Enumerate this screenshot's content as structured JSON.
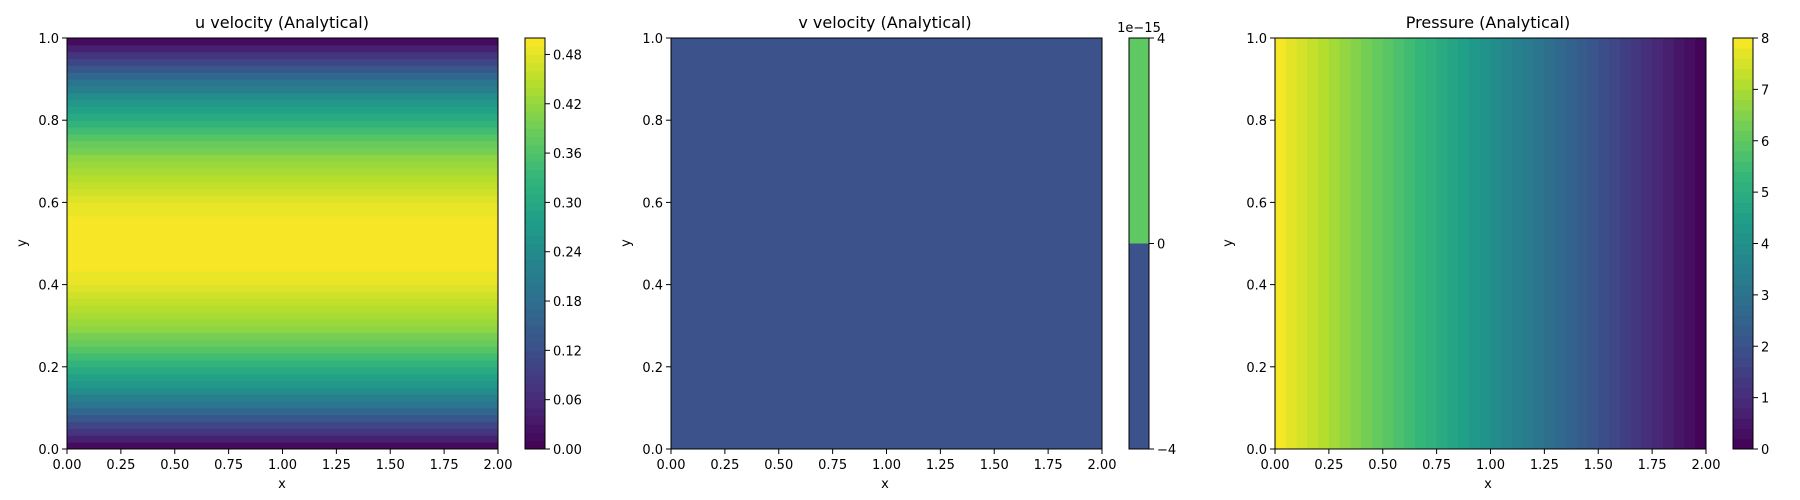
{
  "chart_data": [
    {
      "type": "heatmap",
      "title": "u velocity (Analytical)",
      "xlabel": "x",
      "ylabel": "y",
      "xlim": [
        0,
        2
      ],
      "ylim": [
        0,
        1
      ],
      "x_ticks": [
        "0.00",
        "0.25",
        "0.50",
        "0.75",
        "1.00",
        "1.25",
        "1.50",
        "1.75",
        "2.00"
      ],
      "y_ticks": [
        "0.0",
        "0.2",
        "0.4",
        "0.6",
        "0.8",
        "1.0"
      ],
      "field": "u = 2*0.5*y*(1-y) ... parabolic profile varying with y, constant in x",
      "colorbar": {
        "range": [
          0,
          0.5
        ],
        "ticks": [
          "0.00",
          "0.06",
          "0.12",
          "0.18",
          "0.24",
          "0.30",
          "0.36",
          "0.42",
          "0.48"
        ],
        "offset_label": "",
        "levels": 50
      },
      "colormap": "viridis"
    },
    {
      "type": "heatmap",
      "title": "v velocity (Analytical)",
      "xlabel": "x",
      "ylabel": "y",
      "xlim": [
        0,
        2
      ],
      "ylim": [
        0,
        1
      ],
      "x_ticks": [
        "0.00",
        "0.25",
        "0.50",
        "0.75",
        "1.00",
        "1.25",
        "1.50",
        "1.75",
        "2.00"
      ],
      "y_ticks": [
        "0.0",
        "0.2",
        "0.4",
        "0.6",
        "0.8",
        "1.0"
      ],
      "field": "v = 0 everywhere",
      "colorbar": {
        "range": [
          -4,
          4
        ],
        "ticks": [
          "−4",
          "0",
          "4"
        ],
        "offset_label": "1e−15",
        "levels": 2,
        "level_colors": [
          "#3b528b",
          "#5ec962"
        ]
      },
      "colormap": "viridis"
    },
    {
      "type": "heatmap",
      "title": "Pressure (Analytical)",
      "xlabel": "x",
      "ylabel": "y",
      "xlim": [
        0,
        2
      ],
      "ylim": [
        0,
        1
      ],
      "x_ticks": [
        "0.00",
        "0.25",
        "0.50",
        "0.75",
        "1.00",
        "1.25",
        "1.50",
        "1.75",
        "2.00"
      ],
      "y_ticks": [
        "0.0",
        "0.2",
        "0.4",
        "0.6",
        "0.8",
        "1.0"
      ],
      "field": "p = 8*(1 - x/2), linear in x, constant in y",
      "colorbar": {
        "range": [
          0,
          8
        ],
        "ticks": [
          "0",
          "1",
          "2",
          "3",
          "4",
          "5",
          "6",
          "7",
          "8"
        ],
        "offset_label": "",
        "levels": 40
      },
      "colormap": "viridis"
    }
  ]
}
